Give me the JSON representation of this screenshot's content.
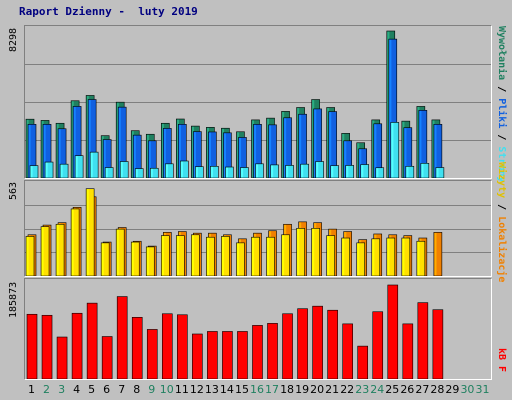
{
  "title": "Raport Dzienny -  luty 2019",
  "colors": {
    "visits": "#208060",
    "hits_files": "#1060e0",
    "pages": "#40e0f0",
    "sites": "#f08000",
    "visits2": "#ffe000",
    "kb": "#ff0000",
    "weekend_label": "#208060",
    "weekday_label": "#000000",
    "empty_label": "#208060"
  },
  "legend": {
    "top": [
      {
        "text": "Wywołania",
        "color": "#208060"
      },
      {
        "text": " / ",
        "color": "#000000"
      },
      {
        "text": "Pliki",
        "color": "#1060e0"
      },
      {
        "text": " / ",
        "color": "#000000"
      },
      {
        "text": "Strony",
        "color": "#40e0f0"
      }
    ],
    "middle": [
      {
        "text": "Wizyty",
        "color": "#e0c000"
      },
      {
        "text": " / ",
        "color": "#000000"
      },
      {
        "text": "Lokalizacje",
        "color": "#f08000"
      }
    ],
    "bottom": [
      {
        "text": "kB F",
        "color": "#ff0000"
      }
    ]
  },
  "chart_data": [
    {
      "type": "bar",
      "name": "hits-files-pages",
      "ymax_label": "8298",
      "ylim": [
        0,
        8298
      ],
      "grid": true,
      "categories": [
        "1",
        "2",
        "3",
        "4",
        "5",
        "6",
        "7",
        "8",
        "9",
        "10",
        "11",
        "12",
        "13",
        "14",
        "15",
        "16",
        "17",
        "18",
        "19",
        "20",
        "21",
        "22",
        "23",
        "24",
        "25",
        "26",
        "27",
        "28",
        "29",
        "30",
        "31"
      ],
      "series": [
        {
          "name": "Wywołania",
          "color": "#208060",
          "values": [
            3320,
            3250,
            3090,
            4360,
            4660,
            2390,
            4280,
            2670,
            2470,
            3090,
            3330,
            2930,
            2860,
            2810,
            2610,
            3280,
            3380,
            3760,
            3980,
            4430,
            3980,
            2520,
            1990,
            3280,
            8298,
            3210,
            4040,
            3280,
            null,
            null,
            null
          ]
        },
        {
          "name": "Pliki",
          "color": "#1060e0",
          "values": [
            3030,
            3030,
            2780,
            4040,
            4430,
            2170,
            4000,
            2420,
            2100,
            2800,
            3030,
            2620,
            2600,
            2550,
            2290,
            3030,
            3000,
            3400,
            3600,
            3900,
            3750,
            2100,
            1650,
            3060,
            7840,
            2840,
            3820,
            3030,
            null,
            null,
            null
          ]
        },
        {
          "name": "Strony",
          "color": "#40e0f0",
          "values": [
            700,
            900,
            780,
            1260,
            1460,
            590,
            930,
            530,
            550,
            800,
            960,
            640,
            660,
            620,
            590,
            800,
            740,
            710,
            780,
            930,
            700,
            710,
            760,
            580,
            3140,
            660,
            830,
            590,
            null,
            null,
            null
          ]
        }
      ]
    },
    {
      "type": "bar",
      "name": "visits-sites",
      "ymax_label": "563",
      "ylim": [
        0,
        563
      ],
      "grid": true,
      "categories": [
        "1",
        "2",
        "3",
        "4",
        "5",
        "6",
        "7",
        "8",
        "9",
        "10",
        "11",
        "12",
        "13",
        "14",
        "15",
        "16",
        "17",
        "18",
        "19",
        "20",
        "21",
        "22",
        "23",
        "24",
        "25",
        "26",
        "27",
        "28",
        "29",
        "30",
        "31"
      ],
      "series": [
        {
          "name": "Lokalizacje",
          "color": "#f08000",
          "values": [
            255,
            315,
            330,
            425,
            490,
            210,
            300,
            215,
            185,
            270,
            275,
            265,
            265,
            255,
            230,
            265,
            280,
            320,
            335,
            330,
            290,
            275,
            225,
            260,
            255,
            250,
            235,
            270,
            null,
            null,
            null
          ]
        },
        {
          "name": "Wizyty",
          "color": "#ffe000",
          "values": [
            245,
            305,
            320,
            415,
            540,
            205,
            290,
            210,
            180,
            250,
            250,
            255,
            240,
            245,
            205,
            240,
            240,
            255,
            295,
            295,
            250,
            235,
            205,
            230,
            235,
            235,
            215,
            null,
            null,
            null,
            null
          ]
        }
      ]
    },
    {
      "type": "bar",
      "name": "kb",
      "ymax_label": "185873",
      "ylim": [
        0,
        185873
      ],
      "grid": false,
      "categories": [
        "1",
        "2",
        "3",
        "4",
        "5",
        "6",
        "7",
        "8",
        "9",
        "10",
        "11",
        "12",
        "13",
        "14",
        "15",
        "16",
        "17",
        "18",
        "19",
        "20",
        "21",
        "22",
        "23",
        "24",
        "25",
        "26",
        "27",
        "28",
        "29",
        "30",
        "31"
      ],
      "series": [
        {
          "name": "kB F",
          "color": "#ff0000",
          "values": [
            128000,
            126000,
            83000,
            130000,
            150000,
            84000,
            163000,
            122000,
            98000,
            129000,
            127000,
            89000,
            94000,
            94000,
            94000,
            106000,
            110000,
            129000,
            139000,
            144000,
            136000,
            109000,
            65000,
            133000,
            185873,
            109000,
            151000,
            137000,
            null,
            null,
            null
          ]
        }
      ]
    }
  ],
  "x_labels": [
    {
      "text": "1",
      "color": "#000000"
    },
    {
      "text": "2",
      "color": "#208060"
    },
    {
      "text": "3",
      "color": "#208060"
    },
    {
      "text": "4",
      "color": "#000000"
    },
    {
      "text": "5",
      "color": "#000000"
    },
    {
      "text": "6",
      "color": "#000000"
    },
    {
      "text": "7",
      "color": "#000000"
    },
    {
      "text": "8",
      "color": "#000000"
    },
    {
      "text": "9",
      "color": "#208060"
    },
    {
      "text": "10",
      "color": "#208060"
    },
    {
      "text": "11",
      "color": "#000000"
    },
    {
      "text": "12",
      "color": "#000000"
    },
    {
      "text": "13",
      "color": "#000000"
    },
    {
      "text": "14",
      "color": "#000000"
    },
    {
      "text": "15",
      "color": "#000000"
    },
    {
      "text": "16",
      "color": "#208060"
    },
    {
      "text": "17",
      "color": "#208060"
    },
    {
      "text": "18",
      "color": "#000000"
    },
    {
      "text": "19",
      "color": "#000000"
    },
    {
      "text": "20",
      "color": "#000000"
    },
    {
      "text": "21",
      "color": "#000000"
    },
    {
      "text": "22",
      "color": "#000000"
    },
    {
      "text": "23",
      "color": "#208060"
    },
    {
      "text": "24",
      "color": "#208060"
    },
    {
      "text": "25",
      "color": "#000000"
    },
    {
      "text": "26",
      "color": "#000000"
    },
    {
      "text": "27",
      "color": "#000000"
    },
    {
      "text": "28",
      "color": "#000000"
    },
    {
      "text": "29",
      "color": "#000000"
    },
    {
      "text": "30",
      "color": "#208060"
    },
    {
      "text": "31",
      "color": "#208060"
    }
  ]
}
